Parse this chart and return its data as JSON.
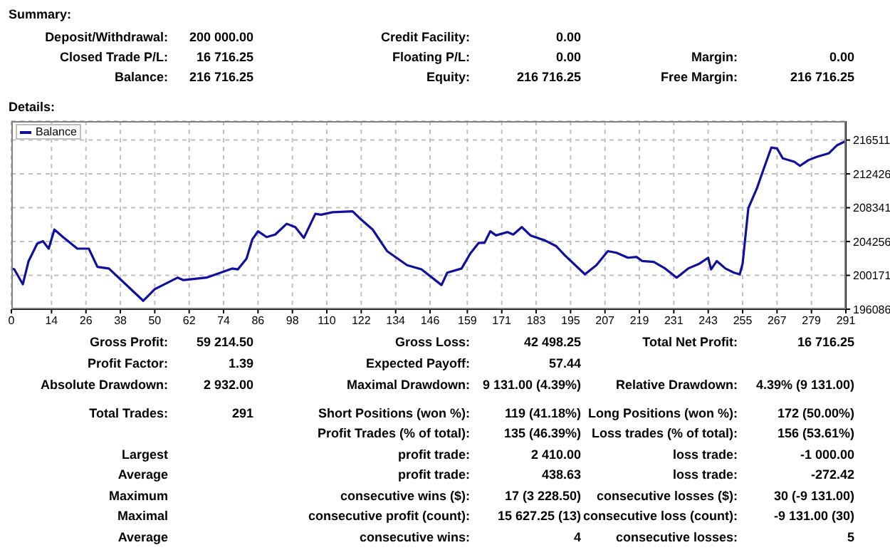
{
  "chart_data": {
    "type": "line",
    "x": [
      0,
      1,
      4,
      6,
      9,
      11,
      13,
      15,
      18,
      23,
      27,
      30,
      34,
      46,
      50,
      58,
      60,
      68,
      77,
      79,
      82,
      84,
      86,
      89,
      92,
      96,
      99,
      102,
      106,
      108,
      112,
      119,
      122,
      126,
      131,
      138,
      143,
      150,
      152,
      157,
      160,
      163,
      165,
      167,
      169,
      173,
      175,
      178,
      181,
      186,
      190,
      193,
      200,
      204,
      208,
      211,
      215,
      218,
      220,
      224,
      228,
      232,
      236,
      240,
      243,
      244,
      246,
      249,
      252,
      254,
      255,
      257,
      260,
      262,
      265,
      267,
      269,
      273,
      275,
      278,
      281,
      285,
      288,
      291
    ],
    "series": [
      {
        "name": "Balance",
        "color": "#10109c",
        "values": [
          201000,
          200900,
          199100,
          201900,
          204000,
          204300,
          203400,
          205700,
          204800,
          203400,
          203400,
          201200,
          201000,
          197100,
          198500,
          199900,
          199600,
          199900,
          201000,
          200900,
          202200,
          204500,
          205500,
          204800,
          205100,
          206400,
          206000,
          204700,
          207600,
          207500,
          207800,
          207900,
          206900,
          205700,
          203100,
          201400,
          200900,
          199000,
          200500,
          201000,
          202800,
          204100,
          204100,
          205500,
          205000,
          205400,
          205100,
          206000,
          205000,
          204400,
          203700,
          202600,
          200300,
          201400,
          203100,
          202900,
          202300,
          202400,
          201900,
          201800,
          201000,
          199900,
          201000,
          201600,
          202300,
          200900,
          201900,
          201000,
          200500,
          200300,
          201600,
          208300,
          210700,
          212700,
          215600,
          215500,
          214300,
          213900,
          213400,
          214100,
          214500,
          214900,
          215900,
          216400
        ]
      }
    ],
    "xlim": [
      0,
      291
    ],
    "xticks": [
      0,
      14,
      26,
      38,
      50,
      62,
      74,
      86,
      98,
      110,
      122,
      134,
      146,
      159,
      171,
      183,
      195,
      207,
      219,
      231,
      243,
      255,
      267,
      279,
      291
    ],
    "ylim": [
      196086,
      218800
    ],
    "yticks": [
      196086,
      200171,
      204256,
      208341,
      212426,
      216511
    ],
    "grid": true,
    "legend": "top left",
    "marker": "none",
    "line_style": "solid",
    "annotations": [
      "Summary:",
      "Deposit/Withdrawal:",
      "200 000.00",
      "Credit Facility:",
      "0.00",
      "Closed Trade P/L:",
      "16 716.25",
      "Floating P/L:",
      "0.00",
      "Margin:",
      "0.00",
      "Balance:",
      "216 716.25",
      "Equity:",
      "216 716.25",
      "Free Margin:",
      "216 716.25",
      "Details:",
      "Gross Profit:",
      "59 214.50",
      "Gross Loss:",
      "42 498.25",
      "Total Net Profit:",
      "16 716.25",
      "Profit Factor:",
      "1.39",
      "Expected Payoff:",
      "57.44",
      "Absolute Drawdown:",
      "2 932.00",
      "Maximal Drawdown:",
      "9 131.00 (4.39%)",
      "Relative Drawdown:",
      "4.39% (9 131.00)",
      "Total Trades:",
      "291",
      "Short Positions (won %):",
      "119 (41.18%)",
      "Long Positions (won %):",
      "172 (50.00%)",
      "Profit Trades (% of total):",
      "135 (46.39%)",
      "Loss trades (% of total):",
      "156 (53.61%)",
      "Largest",
      "profit trade:",
      "2 410.00",
      "loss trade:",
      "-1 000.00",
      "Average",
      "profit trade:",
      "438.63",
      "loss trade:",
      "-272.42",
      "Maximum",
      "consecutive wins ($):",
      "17 (3 228.50)",
      "consecutive losses ($):",
      "30 (-9 131.00)",
      "Maximal",
      "consecutive profit (count):",
      "15 627.25 (13)",
      "consecutive loss (count):",
      "-9 131.00 (30)",
      "Average",
      "consecutive wins:",
      "4",
      "consecutive losses:",
      "5"
    ]
  }
}
